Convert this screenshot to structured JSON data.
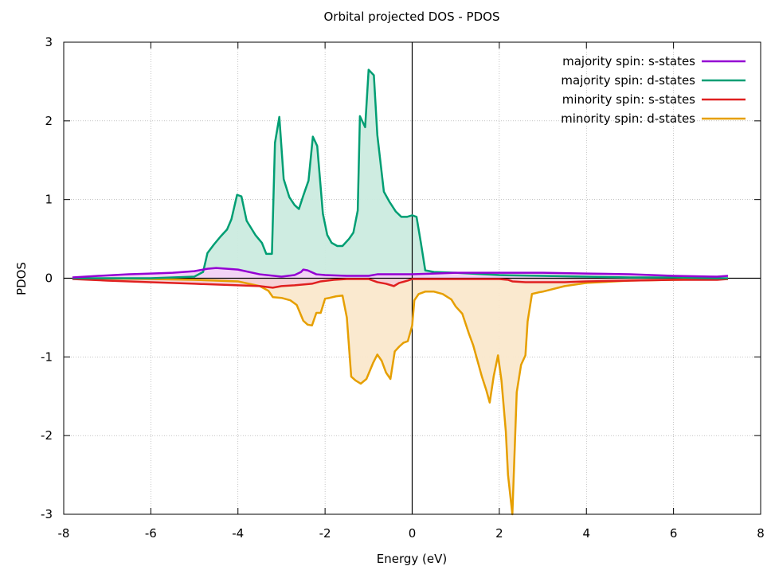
{
  "chart_data": {
    "type": "area",
    "title": "Orbital projected DOS - PDOS",
    "xlabel": "Energy (eV)",
    "ylabel": "PDOS",
    "xlim": [
      -8,
      8
    ],
    "ylim": [
      -3,
      3
    ],
    "xticks": [
      "-8",
      "-6",
      "-4",
      "-2",
      "0",
      "2",
      "4",
      "6",
      "8"
    ],
    "yticks": [
      "3",
      "2",
      "1",
      "0",
      "-1",
      "-2",
      "-3"
    ],
    "grid": true,
    "legend_position": "top-right",
    "series": [
      {
        "name": "majority spin: s-states",
        "color": "#9400d3",
        "fill": "#f3d2f6",
        "points": [
          [
            -7.8,
            0.01
          ],
          [
            -7.2,
            0.03
          ],
          [
            -6.5,
            0.05
          ],
          [
            -6.0,
            0.06
          ],
          [
            -5.5,
            0.07
          ],
          [
            -5.0,
            0.09
          ],
          [
            -4.7,
            0.12
          ],
          [
            -4.5,
            0.13
          ],
          [
            -4.0,
            0.11
          ],
          [
            -3.5,
            0.05
          ],
          [
            -3.0,
            0.02
          ],
          [
            -2.7,
            0.04
          ],
          [
            -2.55,
            0.08
          ],
          [
            -2.5,
            0.11
          ],
          [
            -2.4,
            0.1
          ],
          [
            -2.2,
            0.05
          ],
          [
            -2.0,
            0.04
          ],
          [
            -1.5,
            0.03
          ],
          [
            -1.0,
            0.03
          ],
          [
            -0.8,
            0.05
          ],
          [
            -0.5,
            0.05
          ],
          [
            0.0,
            0.05
          ],
          [
            0.5,
            0.06
          ],
          [
            1.0,
            0.07
          ],
          [
            2.0,
            0.07
          ],
          [
            3.0,
            0.07
          ],
          [
            4.0,
            0.06
          ],
          [
            5.0,
            0.05
          ],
          [
            6.0,
            0.03
          ],
          [
            7.0,
            0.02
          ],
          [
            7.25,
            0.03
          ]
        ]
      },
      {
        "name": "majority spin: d-states",
        "color": "#009e73",
        "fill": "#cbebdf",
        "points": [
          [
            -7.8,
            0.0
          ],
          [
            -6.0,
            0.0
          ],
          [
            -5.0,
            0.02
          ],
          [
            -4.8,
            0.08
          ],
          [
            -4.7,
            0.32
          ],
          [
            -4.55,
            0.43
          ],
          [
            -4.4,
            0.53
          ],
          [
            -4.25,
            0.62
          ],
          [
            -4.15,
            0.75
          ],
          [
            -4.02,
            1.06
          ],
          [
            -3.92,
            1.04
          ],
          [
            -3.8,
            0.73
          ],
          [
            -3.6,
            0.55
          ],
          [
            -3.45,
            0.45
          ],
          [
            -3.35,
            0.31
          ],
          [
            -3.22,
            0.31
          ],
          [
            -3.15,
            1.72
          ],
          [
            -3.05,
            2.05
          ],
          [
            -2.95,
            1.26
          ],
          [
            -2.82,
            1.03
          ],
          [
            -2.7,
            0.93
          ],
          [
            -2.6,
            0.88
          ],
          [
            -2.5,
            1.05
          ],
          [
            -2.38,
            1.24
          ],
          [
            -2.28,
            1.8
          ],
          [
            -2.18,
            1.68
          ],
          [
            -2.05,
            0.82
          ],
          [
            -1.95,
            0.55
          ],
          [
            -1.85,
            0.45
          ],
          [
            -1.72,
            0.41
          ],
          [
            -1.6,
            0.41
          ],
          [
            -1.45,
            0.5
          ],
          [
            -1.35,
            0.58
          ],
          [
            -1.25,
            0.86
          ],
          [
            -1.2,
            2.06
          ],
          [
            -1.08,
            1.92
          ],
          [
            -1.0,
            2.65
          ],
          [
            -0.88,
            2.58
          ],
          [
            -0.8,
            1.82
          ],
          [
            -0.65,
            1.1
          ],
          [
            -0.52,
            0.97
          ],
          [
            -0.38,
            0.85
          ],
          [
            -0.25,
            0.78
          ],
          [
            -0.12,
            0.78
          ],
          [
            0.0,
            0.8
          ],
          [
            0.1,
            0.78
          ],
          [
            0.2,
            0.45
          ],
          [
            0.3,
            0.1
          ],
          [
            0.5,
            0.08
          ],
          [
            1.0,
            0.07
          ],
          [
            2.0,
            0.04
          ],
          [
            3.0,
            0.03
          ],
          [
            4.0,
            0.02
          ],
          [
            5.0,
            0.01
          ],
          [
            6.0,
            0.01
          ],
          [
            7.0,
            0.0
          ],
          [
            7.25,
            0.0
          ]
        ]
      },
      {
        "name": "minority spin: s-states",
        "color": "#e02020",
        "fill": "#f6d0d6",
        "points": [
          [
            -7.8,
            -0.01
          ],
          [
            -7.0,
            -0.03
          ],
          [
            -6.0,
            -0.05
          ],
          [
            -5.0,
            -0.07
          ],
          [
            -4.0,
            -0.09
          ],
          [
            -3.5,
            -0.1
          ],
          [
            -3.2,
            -0.12
          ],
          [
            -3.0,
            -0.1
          ],
          [
            -2.7,
            -0.09
          ],
          [
            -2.5,
            -0.08
          ],
          [
            -2.3,
            -0.07
          ],
          [
            -2.1,
            -0.04
          ],
          [
            -1.8,
            -0.02
          ],
          [
            -1.5,
            -0.01
          ],
          [
            -1.0,
            -0.01
          ],
          [
            -0.8,
            -0.05
          ],
          [
            -0.6,
            -0.07
          ],
          [
            -0.42,
            -0.1
          ],
          [
            -0.3,
            -0.06
          ],
          [
            -0.1,
            -0.03
          ],
          [
            0.0,
            -0.01
          ],
          [
            0.5,
            -0.01
          ],
          [
            1.0,
            -0.01
          ],
          [
            1.5,
            -0.01
          ],
          [
            2.0,
            -0.01
          ],
          [
            2.2,
            -0.02
          ],
          [
            2.3,
            -0.04
          ],
          [
            2.6,
            -0.05
          ],
          [
            3.0,
            -0.05
          ],
          [
            3.5,
            -0.05
          ],
          [
            4.0,
            -0.04
          ],
          [
            5.0,
            -0.03
          ],
          [
            6.0,
            -0.02
          ],
          [
            7.0,
            -0.02
          ],
          [
            7.25,
            -0.01
          ]
        ]
      },
      {
        "name": "minority spin: d-states",
        "color": "#e69f00",
        "fill": "#fae8cc",
        "points": [
          [
            -7.8,
            0.0
          ],
          [
            -6.0,
            -0.01
          ],
          [
            -5.0,
            -0.02
          ],
          [
            -4.5,
            -0.03
          ],
          [
            -4.0,
            -0.04
          ],
          [
            -3.5,
            -0.1
          ],
          [
            -3.3,
            -0.16
          ],
          [
            -3.2,
            -0.24
          ],
          [
            -3.0,
            -0.25
          ],
          [
            -2.8,
            -0.28
          ],
          [
            -2.65,
            -0.34
          ],
          [
            -2.5,
            -0.54
          ],
          [
            -2.4,
            -0.59
          ],
          [
            -2.3,
            -0.6
          ],
          [
            -2.2,
            -0.44
          ],
          [
            -2.1,
            -0.44
          ],
          [
            -2.0,
            -0.26
          ],
          [
            -1.9,
            -0.25
          ],
          [
            -1.75,
            -0.23
          ],
          [
            -1.6,
            -0.22
          ],
          [
            -1.5,
            -0.5
          ],
          [
            -1.4,
            -1.25
          ],
          [
            -1.3,
            -1.3
          ],
          [
            -1.18,
            -1.34
          ],
          [
            -1.05,
            -1.28
          ],
          [
            -0.9,
            -1.08
          ],
          [
            -0.8,
            -0.97
          ],
          [
            -0.7,
            -1.05
          ],
          [
            -0.6,
            -1.2
          ],
          [
            -0.5,
            -1.28
          ],
          [
            -0.4,
            -0.93
          ],
          [
            -0.3,
            -0.87
          ],
          [
            -0.2,
            -0.82
          ],
          [
            -0.1,
            -0.8
          ],
          [
            0.0,
            -0.6
          ],
          [
            0.05,
            -0.28
          ],
          [
            0.15,
            -0.2
          ],
          [
            0.3,
            -0.17
          ],
          [
            0.5,
            -0.17
          ],
          [
            0.7,
            -0.2
          ],
          [
            0.9,
            -0.27
          ],
          [
            1.0,
            -0.36
          ],
          [
            1.15,
            -0.45
          ],
          [
            1.3,
            -0.7
          ],
          [
            1.4,
            -0.85
          ],
          [
            1.5,
            -1.05
          ],
          [
            1.6,
            -1.25
          ],
          [
            1.7,
            -1.42
          ],
          [
            1.78,
            -1.58
          ],
          [
            1.87,
            -1.25
          ],
          [
            1.97,
            -0.98
          ],
          [
            2.05,
            -1.3
          ],
          [
            2.15,
            -1.95
          ],
          [
            2.2,
            -2.5
          ],
          [
            2.3,
            -3.0
          ],
          [
            2.4,
            -1.45
          ],
          [
            2.5,
            -1.1
          ],
          [
            2.6,
            -0.98
          ],
          [
            2.65,
            -0.55
          ],
          [
            2.75,
            -0.2
          ],
          [
            2.9,
            -0.18
          ],
          [
            3.0,
            -0.17
          ],
          [
            3.5,
            -0.1
          ],
          [
            4.0,
            -0.06
          ],
          [
            5.0,
            -0.03
          ],
          [
            6.0,
            -0.02
          ],
          [
            7.0,
            -0.01
          ],
          [
            7.25,
            -0.01
          ]
        ]
      }
    ]
  }
}
